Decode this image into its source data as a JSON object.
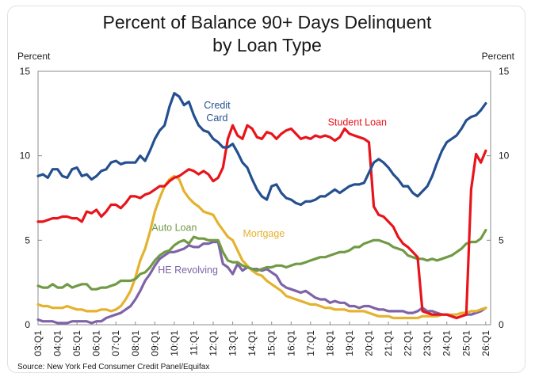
{
  "chart_data": {
    "type": "line",
    "title_line1": "Percent of Balance 90+ Days Delinquent",
    "title_line2": "by Loan Type",
    "ylabel_left": "Percent",
    "ylabel_right": "Percent",
    "ylim": [
      0,
      15
    ],
    "yticks": [
      0,
      5,
      10,
      15
    ],
    "xlim": [
      2003.0,
      2026.25
    ],
    "xtick_labels": [
      "03:Q1",
      "04:Q1",
      "05:Q1",
      "06:Q1",
      "07:Q1",
      "08:Q1",
      "09:Q1",
      "10:Q1",
      "11:Q1",
      "12:Q1",
      "13:Q1",
      "14:Q1",
      "15:Q1",
      "16:Q1",
      "17:Q1",
      "18:Q1",
      "19:Q1",
      "20:Q1",
      "21:Q1",
      "22:Q1",
      "23:Q1",
      "24:Q1",
      "25:Q1",
      "26:Q1"
    ],
    "xtick_values": [
      2003,
      2004,
      2005,
      2006,
      2007,
      2008,
      2009,
      2010,
      2011,
      2012,
      2013,
      2014,
      2015,
      2016,
      2017,
      2018,
      2019,
      2020,
      2021,
      2022,
      2023,
      2024,
      2025,
      2026
    ],
    "source": "Source: New York Fed Consumer Credit Panel/Equifax",
    "grid": false,
    "legend": "inline labels",
    "series": [
      {
        "name": "Credit Card",
        "label_lines": [
          "Credit",
          "Card"
        ],
        "color": "#24508f",
        "x": [
          2003.0,
          2003.25,
          2003.5,
          2003.75,
          2004.0,
          2004.25,
          2004.5,
          2004.75,
          2005.0,
          2005.25,
          2005.5,
          2005.75,
          2006.0,
          2006.25,
          2006.5,
          2006.75,
          2007.0,
          2007.25,
          2007.5,
          2007.75,
          2008.0,
          2008.25,
          2008.5,
          2008.75,
          2009.0,
          2009.25,
          2009.5,
          2009.75,
          2010.0,
          2010.25,
          2010.5,
          2010.75,
          2011.0,
          2011.25,
          2011.5,
          2011.75,
          2012.0,
          2012.25,
          2012.5,
          2012.75,
          2013.0,
          2013.25,
          2013.5,
          2013.75,
          2014.0,
          2014.25,
          2014.5,
          2014.75,
          2015.0,
          2015.25,
          2015.5,
          2015.75,
          2016.0,
          2016.25,
          2016.5,
          2016.75,
          2017.0,
          2017.25,
          2017.5,
          2017.75,
          2018.0,
          2018.25,
          2018.5,
          2018.75,
          2019.0,
          2019.25,
          2019.5,
          2019.75,
          2020.0,
          2020.25,
          2020.5,
          2020.75,
          2021.0,
          2021.25,
          2021.5,
          2021.75,
          2022.0,
          2022.25,
          2022.5,
          2022.75,
          2023.0,
          2023.25,
          2023.5,
          2023.75,
          2024.0,
          2024.25,
          2024.5,
          2024.75,
          2025.0,
          2025.25,
          2025.5,
          2025.75,
          2026.0
        ],
        "y": [
          8.8,
          8.9,
          8.7,
          9.2,
          9.2,
          8.8,
          8.7,
          9.2,
          9.3,
          8.8,
          8.9,
          8.6,
          8.8,
          9.1,
          9.2,
          9.6,
          9.7,
          9.5,
          9.6,
          9.6,
          9.6,
          10.0,
          9.7,
          10.3,
          11.0,
          11.5,
          11.8,
          12.9,
          13.7,
          13.5,
          13.0,
          13.2,
          12.4,
          11.8,
          11.5,
          11.4,
          11.0,
          10.8,
          10.5,
          10.5,
          10.7,
          10.2,
          9.6,
          9.3,
          8.6,
          8.0,
          7.6,
          7.4,
          8.2,
          8.3,
          7.8,
          7.5,
          7.4,
          7.2,
          7.1,
          7.3,
          7.3,
          7.4,
          7.6,
          7.6,
          7.8,
          8.0,
          7.8,
          8.0,
          8.2,
          8.3,
          8.3,
          8.4,
          9.0,
          9.6,
          9.8,
          9.6,
          9.3,
          8.9,
          8.6,
          8.2,
          8.2,
          7.8,
          7.6,
          7.9,
          8.2,
          8.8,
          9.6,
          10.3,
          10.8,
          11.0,
          11.2,
          11.6,
          12.1,
          12.3,
          12.4,
          12.7,
          13.1
        ]
      },
      {
        "name": "Student Loan",
        "label_lines": [
          "Student Loan"
        ],
        "color": "#e8141b",
        "x": [
          2003.0,
          2003.25,
          2003.5,
          2003.75,
          2004.0,
          2004.25,
          2004.5,
          2004.75,
          2005.0,
          2005.25,
          2005.5,
          2005.75,
          2006.0,
          2006.25,
          2006.5,
          2006.75,
          2007.0,
          2007.25,
          2007.5,
          2007.75,
          2008.0,
          2008.25,
          2008.5,
          2008.75,
          2009.0,
          2009.25,
          2009.5,
          2009.75,
          2010.0,
          2010.25,
          2010.5,
          2010.75,
          2011.0,
          2011.25,
          2011.5,
          2011.75,
          2012.0,
          2012.25,
          2012.5,
          2012.75,
          2013.0,
          2013.25,
          2013.5,
          2013.75,
          2014.0,
          2014.25,
          2014.5,
          2014.75,
          2015.0,
          2015.25,
          2015.5,
          2015.75,
          2016.0,
          2016.25,
          2016.5,
          2016.75,
          2017.0,
          2017.25,
          2017.5,
          2017.75,
          2018.0,
          2018.25,
          2018.5,
          2018.75,
          2019.0,
          2019.25,
          2019.5,
          2019.75,
          2020.0,
          2020.25,
          2020.5,
          2020.75,
          2021.0,
          2021.25,
          2021.5,
          2021.75,
          2022.0,
          2022.25,
          2022.5,
          2022.75,
          2023.0,
          2023.25,
          2023.5,
          2023.75,
          2024.0,
          2024.25,
          2024.5,
          2024.75,
          2025.0,
          2025.25,
          2025.5,
          2025.75,
          2026.0
        ],
        "y": [
          6.1,
          6.1,
          6.2,
          6.3,
          6.3,
          6.4,
          6.4,
          6.3,
          6.3,
          6.1,
          6.7,
          6.6,
          6.8,
          6.4,
          6.7,
          7.1,
          7.1,
          6.9,
          7.2,
          7.6,
          7.6,
          7.5,
          7.7,
          7.8,
          8.0,
          8.2,
          8.2,
          8.5,
          8.7,
          8.8,
          9.0,
          9.2,
          9.1,
          8.9,
          9.1,
          8.9,
          8.5,
          8.7,
          9.3,
          11.0,
          11.8,
          11.2,
          11.0,
          11.8,
          11.6,
          11.1,
          11.0,
          11.4,
          11.3,
          11.0,
          11.3,
          11.5,
          11.6,
          11.3,
          11.0,
          11.1,
          11.0,
          11.2,
          11.1,
          11.2,
          11.1,
          10.9,
          11.1,
          11.6,
          11.3,
          11.2,
          11.1,
          11.0,
          10.8,
          7.0,
          6.5,
          6.4,
          6.1,
          5.8,
          5.2,
          4.8,
          4.6,
          4.3,
          4.0,
          0.8,
          0.7,
          0.6,
          0.6,
          0.6,
          0.6,
          0.5,
          0.4,
          0.5,
          0.6,
          8.0,
          10.1,
          9.6,
          10.3
        ]
      },
      {
        "name": "Auto Loan",
        "label_lines": [
          "Auto Loan"
        ],
        "color": "#719a45",
        "x": [
          2003.0,
          2003.25,
          2003.5,
          2003.75,
          2004.0,
          2004.25,
          2004.5,
          2004.75,
          2005.0,
          2005.25,
          2005.5,
          2005.75,
          2006.0,
          2006.25,
          2006.5,
          2006.75,
          2007.0,
          2007.25,
          2007.5,
          2007.75,
          2008.0,
          2008.25,
          2008.5,
          2008.75,
          2009.0,
          2009.25,
          2009.5,
          2009.75,
          2010.0,
          2010.25,
          2010.5,
          2010.75,
          2011.0,
          2011.25,
          2011.5,
          2011.75,
          2012.0,
          2012.25,
          2012.5,
          2012.75,
          2013.0,
          2013.25,
          2013.5,
          2013.75,
          2014.0,
          2014.25,
          2014.5,
          2014.75,
          2015.0,
          2015.25,
          2015.5,
          2015.75,
          2016.0,
          2016.25,
          2016.5,
          2016.75,
          2017.0,
          2017.25,
          2017.5,
          2017.75,
          2018.0,
          2018.25,
          2018.5,
          2018.75,
          2019.0,
          2019.25,
          2019.5,
          2019.75,
          2020.0,
          2020.25,
          2020.5,
          2020.75,
          2021.0,
          2021.25,
          2021.5,
          2021.75,
          2022.0,
          2022.25,
          2022.5,
          2022.75,
          2023.0,
          2023.25,
          2023.5,
          2023.75,
          2024.0,
          2024.25,
          2024.5,
          2024.75,
          2025.0,
          2025.25,
          2025.5,
          2025.75,
          2026.0
        ],
        "y": [
          2.3,
          2.2,
          2.2,
          2.4,
          2.2,
          2.2,
          2.4,
          2.2,
          2.3,
          2.4,
          2.4,
          2.1,
          2.1,
          2.2,
          2.2,
          2.3,
          2.4,
          2.6,
          2.6,
          2.6,
          2.7,
          3.0,
          3.1,
          3.4,
          3.8,
          4.1,
          4.3,
          4.4,
          4.7,
          4.9,
          5.0,
          4.8,
          5.2,
          5.1,
          5.1,
          5.0,
          5.0,
          5.0,
          4.3,
          3.8,
          3.7,
          3.7,
          3.5,
          3.4,
          3.3,
          3.2,
          3.3,
          3.4,
          3.4,
          3.5,
          3.5,
          3.4,
          3.5,
          3.6,
          3.6,
          3.7,
          3.8,
          3.9,
          4.0,
          4.0,
          4.1,
          4.2,
          4.3,
          4.3,
          4.4,
          4.6,
          4.6,
          4.8,
          4.9,
          5.0,
          5.0,
          4.9,
          4.8,
          4.6,
          4.5,
          4.4,
          4.1,
          4.0,
          3.9,
          3.9,
          3.8,
          3.9,
          3.8,
          3.9,
          4.0,
          4.1,
          4.3,
          4.5,
          4.8,
          4.9,
          4.9,
          5.1,
          5.6
        ]
      },
      {
        "name": "Mortgage",
        "label_lines": [
          "Mortgage"
        ],
        "color": "#e4b22e",
        "x": [
          2003.0,
          2003.25,
          2003.5,
          2003.75,
          2004.0,
          2004.25,
          2004.5,
          2004.75,
          2005.0,
          2005.25,
          2005.5,
          2005.75,
          2006.0,
          2006.25,
          2006.5,
          2006.75,
          2007.0,
          2007.25,
          2007.5,
          2007.75,
          2008.0,
          2008.25,
          2008.5,
          2008.75,
          2009.0,
          2009.25,
          2009.5,
          2009.75,
          2010.0,
          2010.25,
          2010.5,
          2010.75,
          2011.0,
          2011.25,
          2011.5,
          2011.75,
          2012.0,
          2012.25,
          2012.5,
          2012.75,
          2013.0,
          2013.25,
          2013.5,
          2013.75,
          2014.0,
          2014.25,
          2014.5,
          2014.75,
          2015.0,
          2015.25,
          2015.5,
          2015.75,
          2016.0,
          2016.25,
          2016.5,
          2016.75,
          2017.0,
          2017.25,
          2017.5,
          2017.75,
          2018.0,
          2018.25,
          2018.5,
          2018.75,
          2019.0,
          2019.25,
          2019.5,
          2019.75,
          2020.0,
          2020.25,
          2020.5,
          2020.75,
          2021.0,
          2021.25,
          2021.5,
          2021.75,
          2022.0,
          2022.25,
          2022.5,
          2022.75,
          2023.0,
          2023.25,
          2023.5,
          2023.75,
          2024.0,
          2024.25,
          2024.5,
          2024.75,
          2025.0,
          2025.25,
          2025.5,
          2025.75,
          2026.0
        ],
        "y": [
          1.2,
          1.1,
          1.1,
          1.0,
          1.0,
          1.0,
          1.1,
          1.0,
          0.9,
          0.9,
          0.8,
          0.8,
          0.8,
          0.9,
          0.9,
          0.8,
          0.9,
          1.1,
          1.5,
          2.0,
          2.8,
          3.8,
          4.5,
          5.5,
          6.7,
          7.5,
          8.2,
          8.6,
          8.8,
          8.6,
          7.9,
          7.5,
          7.2,
          7.0,
          6.7,
          6.6,
          6.5,
          6.0,
          5.6,
          5.2,
          5.0,
          4.4,
          3.8,
          3.5,
          3.2,
          3.0,
          2.9,
          2.6,
          2.4,
          2.2,
          2.0,
          1.7,
          1.6,
          1.5,
          1.4,
          1.3,
          1.2,
          1.2,
          1.1,
          1.0,
          1.0,
          0.9,
          0.9,
          0.9,
          0.8,
          0.8,
          0.8,
          0.8,
          0.7,
          0.6,
          0.5,
          0.5,
          0.5,
          0.4,
          0.4,
          0.4,
          0.4,
          0.4,
          0.4,
          0.5,
          0.5,
          0.5,
          0.5,
          0.6,
          0.6,
          0.6,
          0.6,
          0.7,
          0.7,
          0.8,
          0.8,
          0.9,
          1.0
        ]
      },
      {
        "name": "HE Revolving",
        "label_lines": [
          "HE Revolving"
        ],
        "color": "#7e63a8",
        "x": [
          2003.0,
          2003.25,
          2003.5,
          2003.75,
          2004.0,
          2004.25,
          2004.5,
          2004.75,
          2005.0,
          2005.25,
          2005.5,
          2005.75,
          2006.0,
          2006.25,
          2006.5,
          2006.75,
          2007.0,
          2007.25,
          2007.5,
          2007.75,
          2008.0,
          2008.25,
          2008.5,
          2008.75,
          2009.0,
          2009.25,
          2009.5,
          2009.75,
          2010.0,
          2010.25,
          2010.5,
          2010.75,
          2011.0,
          2011.25,
          2011.5,
          2011.75,
          2012.0,
          2012.25,
          2012.5,
          2012.75,
          2013.0,
          2013.25,
          2013.5,
          2013.75,
          2014.0,
          2014.25,
          2014.5,
          2014.75,
          2015.0,
          2015.25,
          2015.5,
          2015.75,
          2016.0,
          2016.25,
          2016.5,
          2016.75,
          2017.0,
          2017.25,
          2017.5,
          2017.75,
          2018.0,
          2018.25,
          2018.5,
          2018.75,
          2019.0,
          2019.25,
          2019.5,
          2019.75,
          2020.0,
          2020.25,
          2020.5,
          2020.75,
          2021.0,
          2021.25,
          2021.5,
          2021.75,
          2022.0,
          2022.25,
          2022.5,
          2022.75,
          2023.0,
          2023.25,
          2023.5,
          2023.75,
          2024.0,
          2024.25,
          2024.5,
          2024.75,
          2025.0,
          2025.25,
          2025.5,
          2025.75,
          2026.0
        ],
        "y": [
          0.3,
          0.2,
          0.2,
          0.2,
          0.1,
          0.1,
          0.1,
          0.2,
          0.2,
          0.2,
          0.2,
          0.1,
          0.2,
          0.2,
          0.4,
          0.5,
          0.6,
          0.7,
          0.9,
          1.1,
          1.5,
          2.0,
          2.6,
          3.0,
          3.5,
          3.9,
          4.1,
          4.3,
          4.3,
          4.4,
          4.5,
          4.7,
          4.6,
          4.6,
          4.8,
          4.8,
          4.9,
          4.9,
          3.6,
          3.4,
          3.0,
          3.6,
          3.2,
          3.4,
          3.3,
          3.3,
          3.2,
          3.3,
          3.1,
          2.9,
          2.4,
          2.2,
          2.1,
          2.0,
          1.9,
          2.0,
          1.8,
          1.6,
          1.5,
          1.5,
          1.3,
          1.4,
          1.3,
          1.3,
          1.1,
          1.1,
          1.0,
          1.1,
          1.1,
          1.0,
          0.9,
          0.9,
          0.8,
          0.8,
          0.8,
          0.8,
          0.7,
          0.7,
          0.8,
          1.0,
          0.8,
          0.8,
          0.7,
          0.6,
          0.6,
          0.5,
          0.4,
          0.5,
          0.6,
          0.6,
          0.7,
          0.8,
          1.0
        ]
      }
    ]
  }
}
